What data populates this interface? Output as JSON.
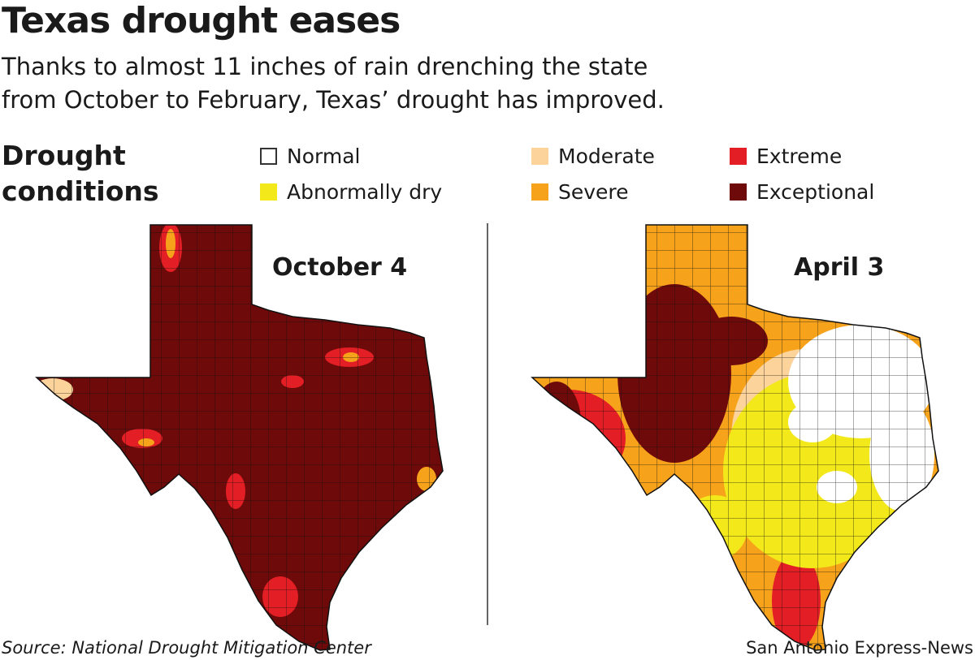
{
  "title": "Texas drought eases",
  "subtitle_line1": "Thanks to almost 11 inches of rain drenching the state",
  "subtitle_line2": "from October to February, Texas’ drought has improved.",
  "legend": {
    "heading_line1": "Drought",
    "heading_line2": "conditions",
    "items": [
      {
        "label": "Normal",
        "color": "#ffffff"
      },
      {
        "label": "Abnormally dry",
        "color": "#f2e81a"
      },
      {
        "label": "Moderate",
        "color": "#fcd39b"
      },
      {
        "label": "Severe",
        "color": "#f7a21b"
      },
      {
        "label": "Extreme",
        "color": "#e31e24"
      },
      {
        "label": "Exceptional",
        "color": "#6e0a0a"
      }
    ]
  },
  "maps": [
    {
      "title": "October 4"
    },
    {
      "title": "April 3"
    }
  ],
  "source": "Source: National Drought Mitigation Center",
  "credit": "San Antonio Express-News"
}
